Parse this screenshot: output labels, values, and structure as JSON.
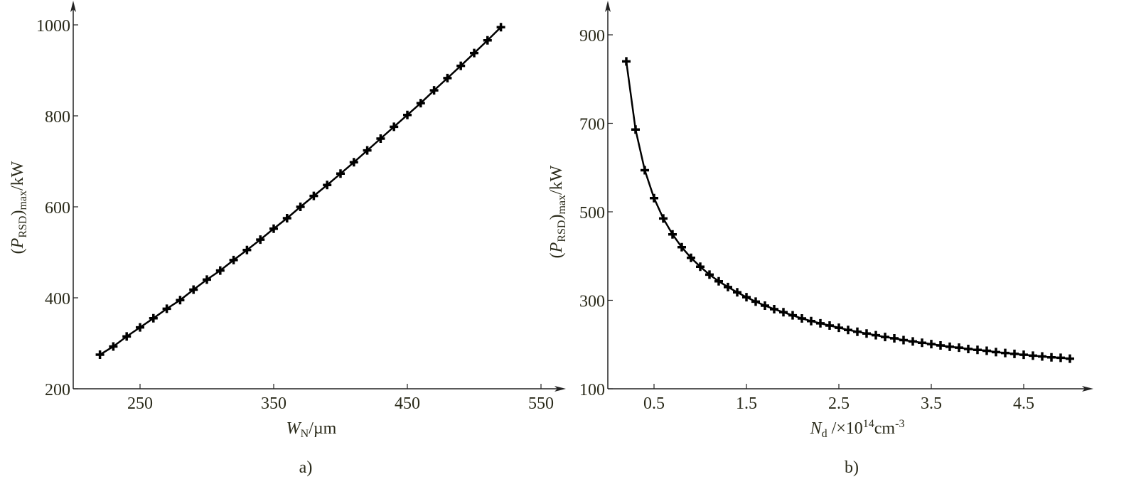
{
  "chart_data": [
    {
      "type": "line",
      "panel_label": "a)",
      "xlabel": {
        "main": "W",
        "sub": "N",
        "rest": "/µm"
      },
      "ylabel": {
        "open": "(",
        "main": "P",
        "sub1": "RSD",
        "close": ")",
        "sub2": "max",
        "rest": "/kW"
      },
      "xlim": [
        200,
        570
      ],
      "ylim": [
        200,
        1040
      ],
      "xticks": [
        "250",
        "350",
        "450",
        "550"
      ],
      "yticks": [
        "200",
        "400",
        "600",
        "800",
        "1000"
      ],
      "grid": false,
      "x": [
        220,
        230,
        240,
        250,
        260,
        270,
        280,
        290,
        300,
        310,
        320,
        330,
        340,
        350,
        360,
        370,
        380,
        390,
        400,
        410,
        420,
        430,
        440,
        450,
        460,
        470,
        480,
        490,
        500,
        510,
        520
      ],
      "y": [
        275,
        293,
        315,
        335,
        355,
        376,
        395,
        418,
        440,
        460,
        483,
        505,
        528,
        552,
        575,
        600,
        624,
        648,
        673,
        698,
        724,
        750,
        776,
        802,
        828,
        856,
        883,
        910,
        938,
        966,
        995
      ],
      "color": "#000000"
    },
    {
      "type": "line",
      "panel_label": "b)",
      "xlabel": {
        "main": "N",
        "sub": "d",
        "rest": " /×10",
        "sup": "14",
        "rest2": "cm",
        "sup2": "-3"
      },
      "ylabel": {
        "open": "(",
        "main": "P",
        "sub1": "RSD",
        "close": ")",
        "sub2": "max",
        "rest": "/kW"
      },
      "xlim": [
        0,
        5.3
      ],
      "ylim": [
        100,
        960
      ],
      "xticks": [
        "0.5",
        "1.5",
        "2.5",
        "3.5",
        "4.5"
      ],
      "yticks": [
        "100",
        "300",
        "500",
        "700",
        "900"
      ],
      "grid": false,
      "x": [
        0.2,
        0.3,
        0.4,
        0.5,
        0.6,
        0.7,
        0.8,
        0.9,
        1.0,
        1.1,
        1.2,
        1.3,
        1.4,
        1.5,
        1.6,
        1.7,
        1.8,
        1.9,
        2.0,
        2.1,
        2.2,
        2.3,
        2.4,
        2.5,
        2.6,
        2.7,
        2.8,
        2.9,
        3.0,
        3.1,
        3.2,
        3.3,
        3.4,
        3.5,
        3.6,
        3.7,
        3.8,
        3.9,
        4.0,
        4.1,
        4.2,
        4.3,
        4.4,
        4.5,
        4.6,
        4.7,
        4.8,
        4.9,
        5.0
      ],
      "y": [
        840,
        686,
        594,
        531,
        485,
        449,
        420,
        396,
        376,
        358,
        343,
        330,
        318,
        307,
        297,
        288,
        280,
        273,
        266,
        259,
        253,
        248,
        243,
        238,
        233,
        229,
        225,
        221,
        217,
        214,
        210,
        207,
        204,
        201,
        198,
        195,
        193,
        190,
        188,
        186,
        183,
        181,
        179,
        177,
        175,
        173,
        171,
        170,
        168
      ],
      "color": "#000000"
    }
  ]
}
